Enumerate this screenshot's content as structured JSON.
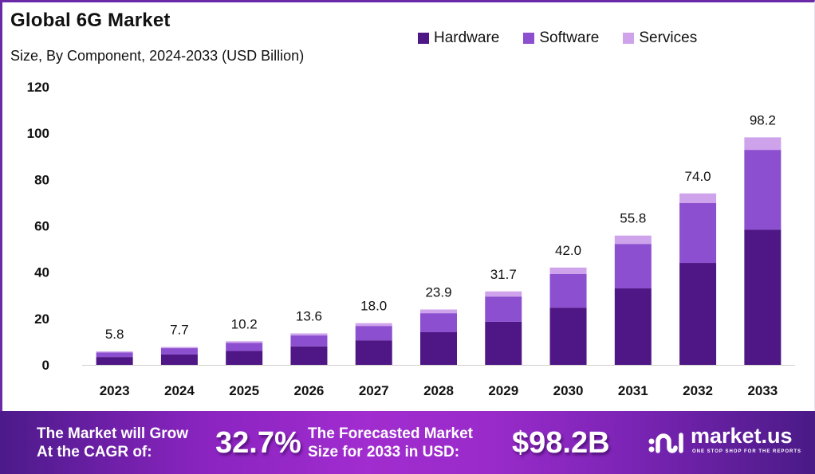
{
  "chart_data": {
    "type": "bar",
    "stacked": true,
    "title": "Global 6G Market",
    "subtitle": "Size, By Component, 2024-2033 (USD Billion)",
    "xlabel": "",
    "ylabel": "",
    "ylim": [
      0,
      120
    ],
    "yticks": [
      0,
      20,
      40,
      60,
      80,
      100,
      120
    ],
    "grid": false,
    "legend_position": "top-right",
    "categories": [
      "2023",
      "2024",
      "2025",
      "2026",
      "2027",
      "2028",
      "2029",
      "2030",
      "2031",
      "2032",
      "2033"
    ],
    "series": [
      {
        "name": "Hardware",
        "color": "#4f1786",
        "values": [
          3.4,
          4.5,
          6.0,
          8.0,
          10.6,
          14.1,
          18.6,
          24.7,
          33.0,
          44.0,
          58.4
        ]
      },
      {
        "name": "Software",
        "color": "#8b4fcf",
        "values": [
          2.0,
          2.7,
          3.5,
          4.7,
          6.2,
          8.2,
          10.9,
          14.5,
          19.2,
          25.8,
          34.4
        ]
      },
      {
        "name": "Services",
        "color": "#cfa3ec",
        "values": [
          0.4,
          0.5,
          0.7,
          0.9,
          1.2,
          1.6,
          2.2,
          2.8,
          3.6,
          4.2,
          5.4
        ]
      }
    ],
    "totals": [
      5.8,
      7.7,
      10.2,
      13.6,
      18.0,
      23.9,
      31.7,
      42.0,
      55.8,
      74.0,
      98.2
    ],
    "total_labels": [
      "5.8",
      "7.7",
      "10.2",
      "13.6",
      "18.0",
      "23.9",
      "31.7",
      "42.0",
      "55.8",
      "74.0",
      "98.2"
    ]
  },
  "banner": {
    "cagr_label_line1": "The Market will Grow",
    "cagr_label_line2": "At the CAGR of:",
    "cagr_value": "32.7%",
    "forecast_label_line1": "The Forecasted Market",
    "forecast_label_line2": "Size for 2033 in USD:",
    "forecast_value": "$98.2B",
    "brand_name": "market.us",
    "brand_tagline": "ONE STOP SHOP FOR THE REPORTS"
  }
}
